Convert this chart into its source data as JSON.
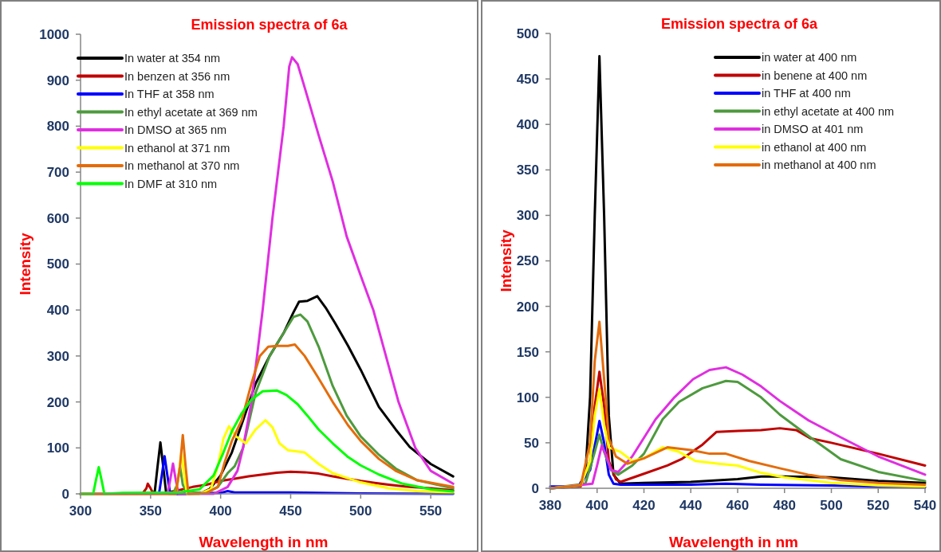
{
  "chart_data": [
    {
      "type": "line",
      "title": "Emission spectra of 6a",
      "xlabel": "Wavelength in nm",
      "ylabel": "Intensity",
      "xlim": [
        300,
        567
      ],
      "ylim": [
        0,
        1000
      ],
      "xticks": [
        300,
        350,
        400,
        450,
        500,
        550
      ],
      "yticks": [
        0,
        100,
        200,
        300,
        400,
        500,
        600,
        700,
        800,
        900,
        1000
      ],
      "legend": "top left",
      "grid": false,
      "series": [
        {
          "name": "In water at 354 nm",
          "color": "#000000",
          "x": [
            300,
            350,
            353,
            355,
            357,
            359,
            361,
            363,
            385,
            392,
            400,
            408,
            416,
            425,
            435,
            445,
            452,
            456,
            462,
            469,
            475,
            482,
            491,
            500,
            513,
            525,
            535,
            550,
            566
          ],
          "values": [
            0,
            0,
            5,
            60,
            112,
            60,
            5,
            0,
            0,
            10,
            40,
            90,
            160,
            240,
            300,
            350,
            395,
            418,
            420,
            430,
            405,
            370,
            322,
            270,
            189,
            140,
            102,
            65,
            38
          ]
        },
        {
          "name": "In benzen at 356 nm",
          "color": "#c00000",
          "x": [
            300,
            344,
            347,
            348,
            350,
            352,
            362,
            370,
            380,
            390,
            400,
            410,
            420,
            430,
            440,
            450,
            460,
            470,
            480,
            490,
            500,
            510,
            520,
            535,
            550,
            566
          ],
          "values": [
            0,
            0,
            12,
            22,
            12,
            0,
            3,
            8,
            15,
            20,
            28,
            33,
            38,
            42,
            46,
            48,
            47,
            44,
            38,
            33,
            28,
            24,
            20,
            15,
            12,
            8
          ]
        },
        {
          "name": "In THF at 358 nm",
          "color": "#0000ff",
          "x": [
            300,
            356,
            358,
            360,
            362,
            364,
            400,
            405,
            410,
            450,
            500,
            566
          ],
          "values": [
            0,
            0,
            40,
            82,
            40,
            0,
            2,
            6,
            3,
            3,
            1,
            0
          ]
        },
        {
          "name": "In ethyl acetate at 369 nm",
          "color": "#4e9a3e",
          "x": [
            300,
            366,
            369,
            371,
            373,
            376,
            390,
            398,
            405,
            410,
            416,
            425,
            435,
            445,
            452,
            457,
            462,
            470,
            480,
            490,
            500,
            513,
            525,
            540,
            566
          ],
          "values": [
            0,
            0,
            20,
            60,
            20,
            2,
            3,
            15,
            45,
            60,
            100,
            220,
            300,
            350,
            385,
            390,
            375,
            320,
            235,
            170,
            125,
            85,
            55,
            30,
            12
          ]
        },
        {
          "name": "In DMSO at 365 nm",
          "color": "#e02ee0",
          "x": [
            300,
            362,
            364,
            366,
            368,
            370,
            395,
            405,
            412,
            416,
            422,
            430,
            437,
            445,
            449,
            451,
            455,
            460,
            470,
            480,
            490,
            500,
            509,
            518,
            527,
            539,
            550,
            566
          ],
          "values": [
            0,
            0,
            30,
            66,
            30,
            0,
            0,
            15,
            50,
            100,
            200,
            400,
            600,
            800,
            930,
            950,
            935,
            884,
            780,
            680,
            560,
            475,
            400,
            300,
            200,
            100,
            50,
            22
          ]
        },
        {
          "name": "In ethanol at 371 nm",
          "color": "#ffff00",
          "x": [
            300,
            368,
            370,
            372,
            374,
            376,
            385,
            393,
            398,
            402,
            406,
            411,
            418,
            425,
            432,
            437,
            442,
            448,
            460,
            470,
            480,
            490,
            500,
            520,
            540,
            566
          ],
          "values": [
            0,
            0,
            40,
            90,
            40,
            0,
            0,
            10,
            60,
            120,
            147,
            125,
            110,
            140,
            160,
            145,
            110,
            95,
            90,
            65,
            45,
            35,
            25,
            12,
            6,
            3
          ]
        },
        {
          "name": "In methanol at 370 nm",
          "color": "#e46c0a",
          "x": [
            300,
            368,
            371,
            373,
            375,
            377,
            390,
            398,
            403,
            408,
            415,
            422,
            428,
            434,
            440,
            448,
            453,
            460,
            469,
            480,
            491,
            500,
            513,
            525,
            540,
            566
          ],
          "values": [
            0,
            0,
            60,
            128,
            60,
            0,
            2,
            15,
            70,
            115,
            160,
            240,
            300,
            320,
            322,
            322,
            325,
            300,
            256,
            200,
            149,
            115,
            76,
            50,
            30,
            15
          ]
        },
        {
          "name": "In DMF at 310 nm",
          "color": "#00ff00",
          "x": [
            300,
            309,
            311,
            313,
            315,
            317,
            330,
            370,
            385,
            395,
            402,
            408,
            415,
            422,
            430,
            440,
            447,
            455,
            462,
            470,
            480,
            491,
            500,
            513,
            530,
            550,
            566
          ],
          "values": [
            0,
            0,
            30,
            58,
            30,
            0,
            2,
            3,
            10,
            40,
            90,
            136,
            175,
            205,
            223,
            225,
            215,
            195,
            170,
            140,
            110,
            80,
            62,
            42,
            22,
            10,
            5
          ]
        }
      ]
    },
    {
      "type": "line",
      "title": "Emission spectra of 6a",
      "xlabel": "Wavelength in nm",
      "ylabel": "Intensity",
      "xlim": [
        380,
        540
      ],
      "ylim": [
        0,
        500
      ],
      "xticks": [
        380,
        400,
        420,
        440,
        460,
        480,
        500,
        520,
        540
      ],
      "yticks": [
        0,
        50,
        100,
        150,
        200,
        250,
        300,
        350,
        400,
        450,
        500
      ],
      "legend": "top right",
      "grid": false,
      "series": [
        {
          "name": "in water at 400 nm",
          "color": "#000000",
          "x": [
            380,
            392,
            395,
            397,
            399,
            401,
            403,
            405,
            407,
            410,
            420,
            440,
            460,
            470,
            480,
            500,
            520,
            540
          ],
          "values": [
            0,
            2,
            15,
            100,
            300,
            475,
            300,
            80,
            15,
            5,
            6,
            7,
            10,
            13,
            13,
            12,
            8,
            6
          ]
        },
        {
          "name": "in benene at 400 nm",
          "color": "#c00000",
          "x": [
            380,
            393,
            397,
            399,
            401,
            403,
            405,
            408,
            410,
            420,
            430,
            436,
            445,
            451,
            460,
            470,
            478,
            485,
            491,
            500,
            520,
            540
          ],
          "values": [
            0,
            2,
            30,
            90,
            128,
            90,
            30,
            10,
            7,
            16,
            25,
            32,
            48,
            62,
            63,
            64,
            66,
            64,
            55,
            50,
            38,
            25
          ]
        },
        {
          "name": "in THF at 400 nm",
          "color": "#0000ff",
          "x": [
            380,
            392,
            397,
            400,
            401,
            403,
            405,
            407,
            410,
            440,
            455,
            470,
            500,
            520,
            540
          ],
          "values": [
            2,
            2,
            20,
            60,
            74,
            50,
            15,
            5,
            4,
            4,
            5,
            4,
            3,
            2,
            1
          ]
        },
        {
          "name": "in ethyl acetate at 400 nm",
          "color": "#4e9a3e",
          "x": [
            380,
            395,
            399,
            401,
            403,
            406,
            409,
            415,
            420,
            428,
            435,
            445,
            455,
            460,
            470,
            478,
            491,
            504,
            520,
            540
          ],
          "values": [
            0,
            5,
            40,
            59,
            40,
            20,
            15,
            25,
            38,
            76,
            95,
            110,
            118,
            117,
            100,
            81,
            56,
            32,
            18,
            8
          ]
        },
        {
          "name": "in DMSO at 401 nm",
          "color": "#e02ee0",
          "x": [
            380,
            398,
            400,
            402,
            404,
            406,
            409,
            415,
            425,
            433,
            441,
            448,
            455,
            462,
            470,
            478,
            490,
            504,
            520,
            540
          ],
          "values": [
            0,
            5,
            25,
            47,
            35,
            20,
            18,
            35,
            76,
            100,
            120,
            130,
            133,
            125,
            112,
            96,
            75,
            56,
            35,
            15
          ]
        },
        {
          "name": "in ethanol at 400 nm",
          "color": "#ffff00",
          "x": [
            380,
            393,
            397,
            399,
            401,
            403,
            405,
            410,
            415,
            420,
            428,
            435,
            442,
            452,
            460,
            470,
            480,
            500,
            520,
            540
          ],
          "values": [
            0,
            3,
            30,
            80,
            109,
            70,
            45,
            40,
            30,
            33,
            45,
            40,
            30,
            27,
            25,
            17,
            12,
            6,
            3,
            2
          ]
        },
        {
          "name": "in methanol at 400 nm",
          "color": "#e46c0a",
          "x": [
            380,
            393,
            397,
            399,
            401,
            403,
            405,
            408,
            413,
            420,
            430,
            440,
            448,
            455,
            465,
            478,
            490,
            504,
            520,
            540
          ],
          "values": [
            0,
            3,
            50,
            140,
            183,
            120,
            55,
            35,
            27,
            33,
            45,
            42,
            38,
            38,
            30,
            22,
            15,
            9,
            6,
            4
          ]
        }
      ]
    }
  ]
}
